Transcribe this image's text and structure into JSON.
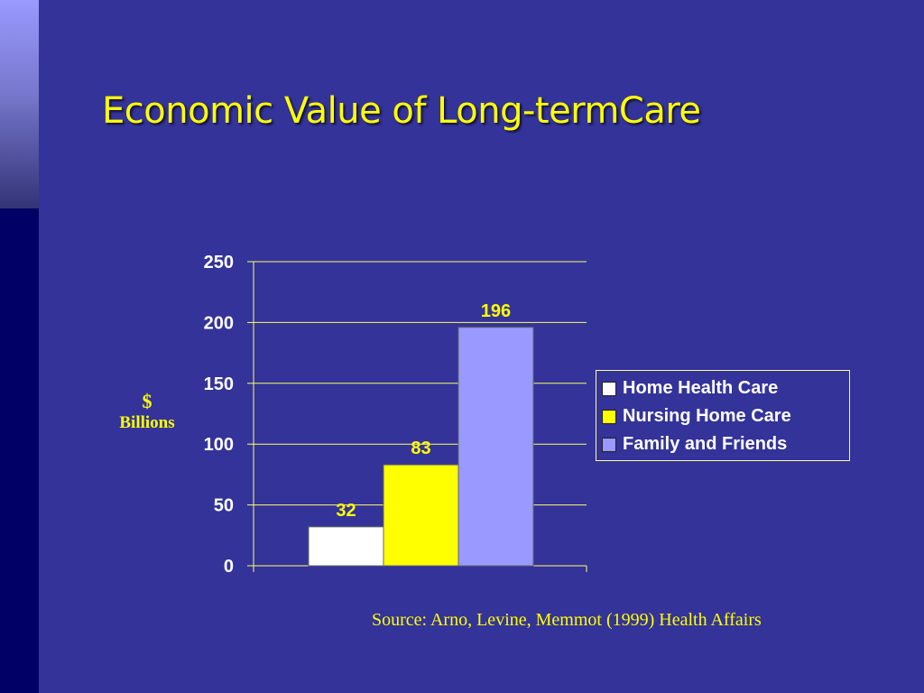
{
  "slide": {
    "title": "Economic Value of Long-termCare",
    "source": "Source: Arno, Levine, Memmot (1999) Health Affairs"
  },
  "colors": {
    "background": "#333399",
    "title": "#ffff00",
    "gridline": "#ffff66",
    "axis_text": "#ffffff",
    "data_label": "#ffff00"
  },
  "chart_data": {
    "type": "bar",
    "title": "",
    "ylabel_unit": "$",
    "ylabel": "Billions",
    "ylim": [
      0,
      250
    ],
    "yticks": [
      0,
      50,
      100,
      150,
      200,
      250
    ],
    "grid": true,
    "legend_placement": "right",
    "series": [
      {
        "name": "Home Health Care",
        "value": 32,
        "color": "#ffffff"
      },
      {
        "name": "Nursing Home Care",
        "value": 83,
        "color": "#ffff00"
      },
      {
        "name": "Family and Friends",
        "value": 196,
        "color": "#9999ff"
      }
    ]
  }
}
